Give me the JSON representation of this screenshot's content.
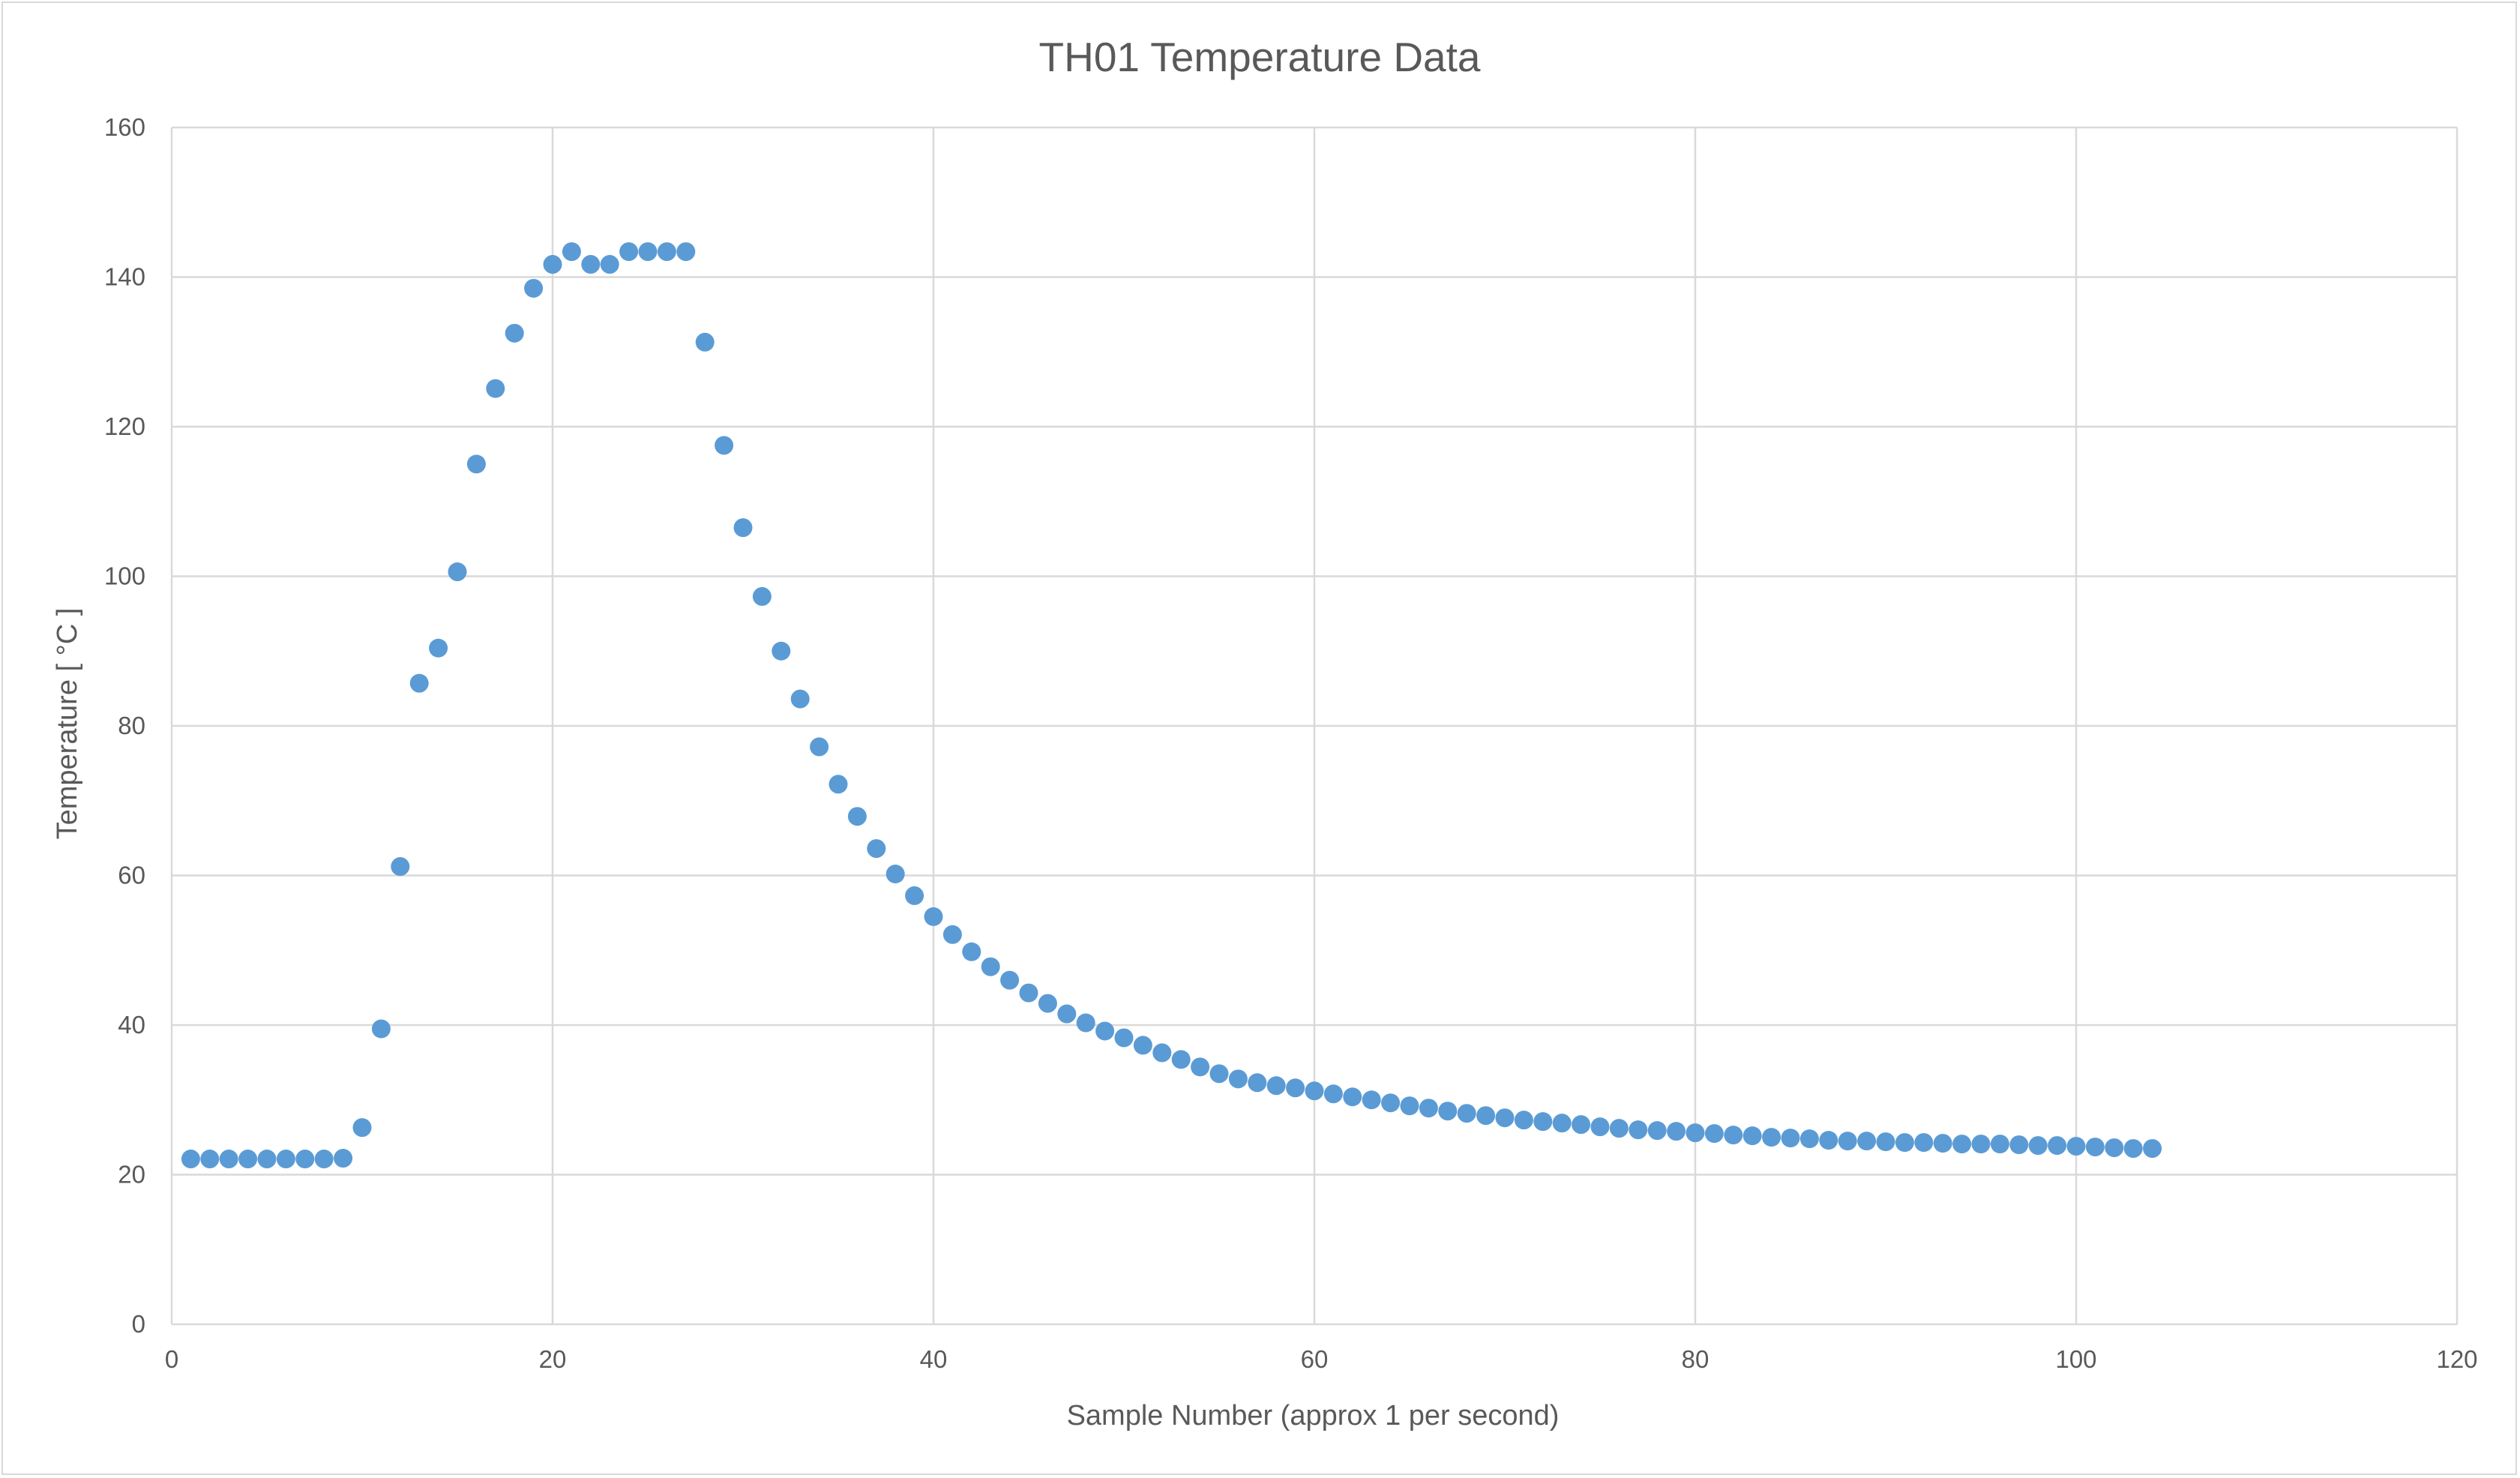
{
  "chart_data": {
    "type": "scatter",
    "title": "TH01 Temperature Data",
    "xlabel": "Sample Number (approx 1 per second)",
    "ylabel": "Temperature [ °C ]",
    "xlim": [
      0,
      120
    ],
    "ylim": [
      0,
      160
    ],
    "xticks": [
      0,
      20,
      40,
      60,
      80,
      100,
      120
    ],
    "yticks": [
      0,
      20,
      40,
      60,
      80,
      100,
      120,
      140,
      160
    ],
    "grid": true,
    "legend": "none",
    "marker_color": "#5b9bd5",
    "series": [
      {
        "points": [
          [
            1,
            22.1
          ],
          [
            2,
            22.1
          ],
          [
            3,
            22.1
          ],
          [
            4,
            22.1
          ],
          [
            5,
            22.1
          ],
          [
            6,
            22.1
          ],
          [
            7,
            22.1
          ],
          [
            8,
            22.1
          ],
          [
            9,
            22.2
          ],
          [
            10,
            26.3
          ],
          [
            11,
            39.5
          ],
          [
            12,
            61.2
          ],
          [
            13,
            85.7
          ],
          [
            14,
            90.4
          ],
          [
            15,
            100.6
          ],
          [
            16,
            115.0
          ],
          [
            17,
            125.1
          ],
          [
            18,
            132.5
          ],
          [
            19,
            138.5
          ],
          [
            20,
            141.7
          ],
          [
            21,
            143.4
          ],
          [
            22,
            141.7
          ],
          [
            23,
            141.7
          ],
          [
            24,
            143.4
          ],
          [
            25,
            143.4
          ],
          [
            26,
            143.4
          ],
          [
            27,
            143.4
          ],
          [
            28,
            131.3
          ],
          [
            29,
            117.5
          ],
          [
            30,
            106.5
          ],
          [
            31,
            97.3
          ],
          [
            32,
            90.0
          ],
          [
            33,
            83.6
          ],
          [
            34,
            77.2
          ],
          [
            35,
            72.2
          ],
          [
            36,
            67.9
          ],
          [
            37,
            63.6
          ],
          [
            38,
            60.2
          ],
          [
            39,
            57.3
          ],
          [
            40,
            54.5
          ],
          [
            41,
            52.1
          ],
          [
            42,
            49.8
          ],
          [
            43,
            47.8
          ],
          [
            44,
            46.0
          ],
          [
            45,
            44.3
          ],
          [
            46,
            42.9
          ],
          [
            47,
            41.5
          ],
          [
            48,
            40.3
          ],
          [
            49,
            39.2
          ],
          [
            50,
            38.3
          ],
          [
            51,
            37.3
          ],
          [
            52,
            36.3
          ],
          [
            53,
            35.4
          ],
          [
            54,
            34.4
          ],
          [
            55,
            33.5
          ],
          [
            56,
            32.8
          ],
          [
            57,
            32.3
          ],
          [
            58,
            31.9
          ],
          [
            59,
            31.6
          ],
          [
            60,
            31.2
          ],
          [
            61,
            30.8
          ],
          [
            62,
            30.4
          ],
          [
            63,
            30.0
          ],
          [
            64,
            29.6
          ],
          [
            65,
            29.2
          ],
          [
            66,
            28.9
          ],
          [
            67,
            28.5
          ],
          [
            68,
            28.2
          ],
          [
            69,
            27.9
          ],
          [
            70,
            27.6
          ],
          [
            71,
            27.3
          ],
          [
            72,
            27.1
          ],
          [
            73,
            26.9
          ],
          [
            74,
            26.7
          ],
          [
            75,
            26.4
          ],
          [
            76,
            26.2
          ],
          [
            77,
            26.0
          ],
          [
            78,
            25.9
          ],
          [
            79,
            25.8
          ],
          [
            80,
            25.6
          ],
          [
            81,
            25.5
          ],
          [
            82,
            25.3
          ],
          [
            83,
            25.2
          ],
          [
            84,
            25.0
          ],
          [
            85,
            24.9
          ],
          [
            86,
            24.8
          ],
          [
            87,
            24.6
          ],
          [
            88,
            24.5
          ],
          [
            89,
            24.5
          ],
          [
            90,
            24.4
          ],
          [
            91,
            24.3
          ],
          [
            92,
            24.3
          ],
          [
            93,
            24.2
          ],
          [
            94,
            24.1
          ],
          [
            95,
            24.1
          ],
          [
            96,
            24.1
          ],
          [
            97,
            24.0
          ],
          [
            98,
            23.9
          ],
          [
            99,
            23.9
          ],
          [
            100,
            23.8
          ],
          [
            101,
            23.7
          ],
          [
            102,
            23.6
          ],
          [
            103,
            23.5
          ],
          [
            104,
            23.5
          ]
        ]
      }
    ]
  }
}
